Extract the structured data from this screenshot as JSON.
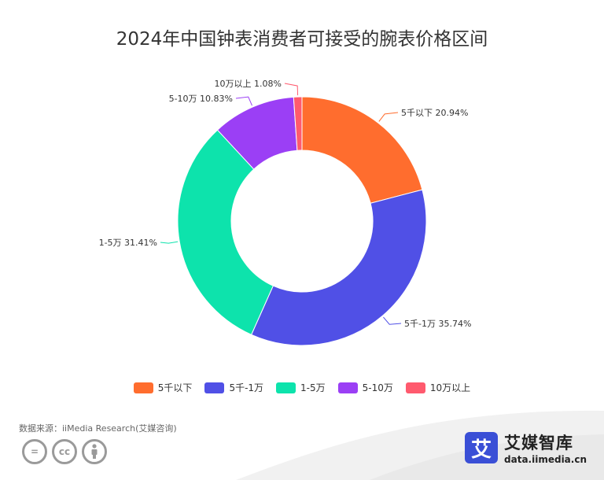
{
  "chart_data": {
    "type": "pie",
    "title": "2024年中国钟表消费者可接受的腕表价格区间",
    "donut": true,
    "categories": [
      "5千以下",
      "5千-1万",
      "1-5万",
      "5-10万",
      "10万以上"
    ],
    "values": [
      20.94,
      35.74,
      31.41,
      10.83,
      1.08
    ],
    "data_labels": [
      "5千以下 20.94%",
      "5千-1万 35.74%",
      "1-5万 31.41%",
      "5-10万 10.83%",
      "10万以上 1.08%"
    ],
    "colors": [
      "#ff6d2e",
      "#5050e6",
      "#0de3ac",
      "#9b3ff5",
      "#ff5a6e"
    ],
    "legend_position": "bottom"
  },
  "source": "数据来源：iiMedia Research(艾媒咨询)",
  "brand": {
    "logo_char": "艾",
    "name": "艾媒智库",
    "url": "data.iimedia.cn"
  },
  "license_icons": [
    "equals-icon",
    "cc-icon",
    "person-icon"
  ],
  "license_labels": [
    "=",
    "cc",
    ""
  ]
}
